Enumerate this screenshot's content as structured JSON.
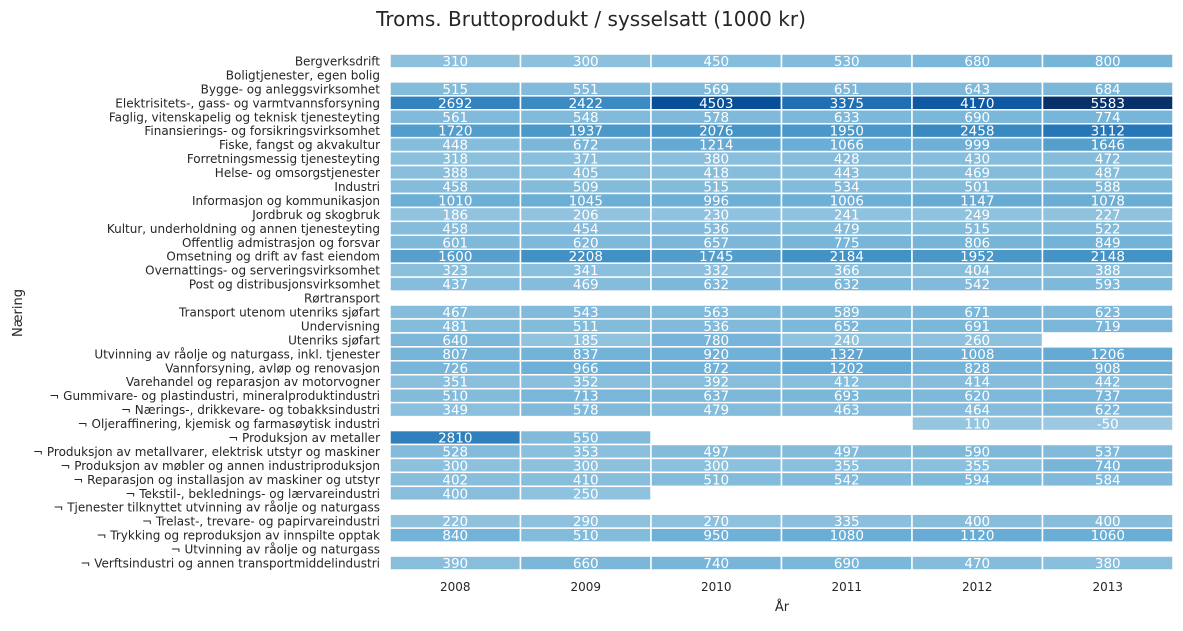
{
  "chart_data": {
    "type": "heatmap",
    "title": "Troms. Bruttoprodukt / sysselsatt (1000 kr)",
    "xlabel": "År",
    "ylabel": "Næring",
    "columns": [
      "2008",
      "2009",
      "2010",
      "2011",
      "2012",
      "2013"
    ],
    "rows": [
      "Bergverksdrift",
      "Boligtjenester, egen bolig",
      "Bygge- og anleggsvirksomhet",
      "Elektrisitets-, gass- og varmtvannsforsyning",
      "Faglig, vitenskapelig og teknisk tjenesteyting",
      "Finansierings- og forsikringsvirksomhet",
      "Fiske, fangst og akvakultur",
      "Forretningsmessig tjenesteyting",
      "Helse- og omsorgstjenester",
      "Industri",
      "Informasjon og kommunikasjon",
      "Jordbruk og skogbruk",
      "Kultur, underholdning og annen tjenesteyting",
      "Offentlig admistrasjon og forsvar",
      "Omsetning og drift av fast eiendom",
      "Overnattings- og serveringsvirksomhet",
      "Post og distribusjonsvirksomhet",
      "Rørtransport",
      "Transport utenom utenriks sjøfart",
      "Undervisning",
      "Utenriks sjøfart",
      "Utvinning av råolje og naturgass, inkl. tjenester",
      "Vannforsyning, avløp og renovasjon",
      "Varehandel og reparasjon av motorvogner",
      "¬ Gummivare- og plastindustri, mineralproduktindustri",
      "¬ Nærings-, drikkevare- og tobakksindustri",
      "¬ Oljeraffinering, kjemisk og farmasøytisk industri",
      "¬ Produksjon av metaller",
      "¬ Produksjon av metallvarer, elektrisk utstyr og maskiner",
      "¬ Produksjon av møbler og annen industriproduksjon",
      "¬ Reparasjon og installasjon av maskiner og utstyr",
      "¬ Tekstil-, beklednings- og lærvareindustri",
      "¬ Tjenester tilknyttet utvinning av råolje og naturgass",
      "¬ Trelast-, trevare- og papirvareindustri",
      "¬ Trykking og reproduksjon av innspilte opptak",
      "¬ Utvinning av råolje og naturgass",
      "¬ Verftsindustri og annen transportmiddelindustri"
    ],
    "values": [
      [
        310,
        300,
        450,
        530,
        680,
        800
      ],
      [
        null,
        null,
        null,
        null,
        null,
        null
      ],
      [
        515,
        551,
        569,
        651,
        643,
        684
      ],
      [
        2692,
        2422,
        4503,
        3375,
        4170,
        5583
      ],
      [
        561,
        548,
        578,
        633,
        690,
        774
      ],
      [
        1720,
        1937,
        2076,
        1950,
        2458,
        3112
      ],
      [
        448,
        672,
        1214,
        1066,
        999,
        1646
      ],
      [
        318,
        371,
        380,
        428,
        430,
        472
      ],
      [
        388,
        405,
        418,
        443,
        469,
        487
      ],
      [
        458,
        509,
        515,
        534,
        501,
        588
      ],
      [
        1010,
        1045,
        996,
        1006,
        1147,
        1078
      ],
      [
        186,
        206,
        230,
        241,
        249,
        227
      ],
      [
        458,
        454,
        536,
        479,
        515,
        522
      ],
      [
        601,
        620,
        657,
        775,
        806,
        849
      ],
      [
        1600,
        2208,
        1745,
        2184,
        1952,
        2148
      ],
      [
        323,
        341,
        332,
        366,
        404,
        388
      ],
      [
        437,
        469,
        632,
        632,
        542,
        593
      ],
      [
        null,
        null,
        null,
        null,
        null,
        null
      ],
      [
        467,
        543,
        563,
        589,
        671,
        623
      ],
      [
        481,
        511,
        536,
        652,
        691,
        719
      ],
      [
        640,
        185,
        780,
        240,
        260,
        null
      ],
      [
        807,
        837,
        920,
        1327,
        1008,
        1206
      ],
      [
        726,
        966,
        872,
        1202,
        828,
        908
      ],
      [
        351,
        352,
        392,
        412,
        414,
        442
      ],
      [
        510,
        713,
        637,
        693,
        620,
        737
      ],
      [
        349,
        578,
        479,
        463,
        464,
        622
      ],
      [
        null,
        null,
        null,
        null,
        110,
        -50
      ],
      [
        2810,
        550,
        null,
        null,
        null,
        null
      ],
      [
        528,
        353,
        497,
        497,
        590,
        537
      ],
      [
        300,
        300,
        300,
        355,
        355,
        740
      ],
      [
        402,
        410,
        510,
        542,
        594,
        584
      ],
      [
        400,
        250,
        null,
        null,
        null,
        null
      ],
      [
        null,
        null,
        null,
        null,
        null,
        null
      ],
      [
        220,
        290,
        270,
        335,
        400,
        400
      ],
      [
        840,
        510,
        950,
        1080,
        1120,
        1060
      ],
      [
        null,
        null,
        null,
        null,
        null,
        null
      ],
      [
        390,
        660,
        740,
        690,
        470,
        380
      ]
    ],
    "colorscale": {
      "name": "Blues",
      "stops": [
        "#f7fbff",
        "#deebf7",
        "#c6dbef",
        "#9ecae1",
        "#6baed6",
        "#4292c6",
        "#2171b5",
        "#08519c",
        "#08306b"
      ],
      "vmin": -3500,
      "vmax": 5583
    },
    "missing_cells_blank": true,
    "grid_lines_color": "#ffffff",
    "annotations": true
  }
}
